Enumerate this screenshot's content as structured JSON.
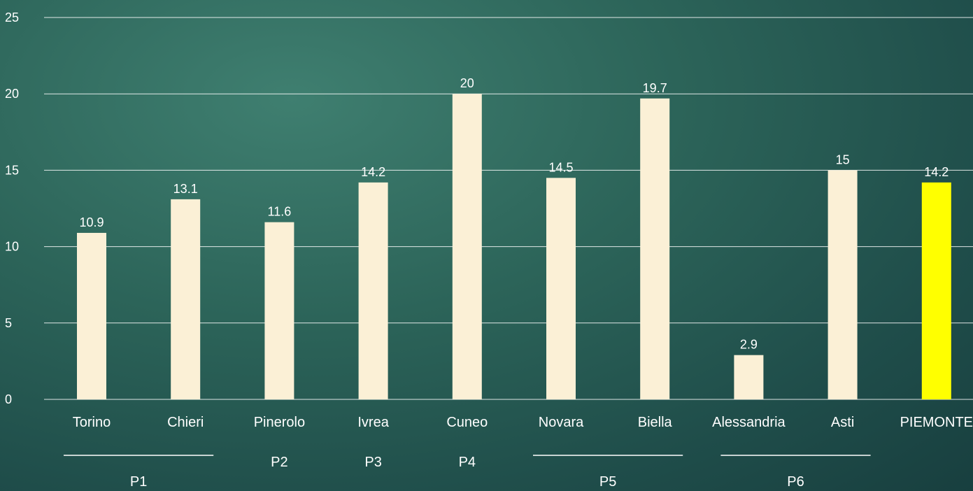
{
  "chart_data": {
    "type": "bar",
    "title": "",
    "xlabel": "",
    "ylabel": "",
    "ylim": [
      0,
      25
    ],
    "yticks": [
      "0",
      "5",
      "10",
      "15",
      "20",
      "25"
    ],
    "categories": [
      "Torino",
      "Chieri",
      "Pinerolo",
      "Ivrea",
      "Cuneo",
      "Novara",
      "Biella",
      "Alessandria",
      "Asti",
      "PIEMONTE"
    ],
    "values": [
      10.9,
      13.1,
      11.6,
      14.2,
      20,
      14.5,
      19.7,
      2.9,
      15,
      14.2
    ],
    "value_labels": [
      "10.9",
      "13.1",
      "11.6",
      "14.2",
      "20",
      "14.5",
      "19.7",
      "2.9",
      "15",
      "14.2"
    ],
    "groups": [
      {
        "label": "P1",
        "categories": [
          "Torino",
          "Chieri"
        ]
      },
      {
        "label": "P2",
        "categories": [
          "Pinerolo"
        ]
      },
      {
        "label": "P3",
        "categories": [
          "Ivrea"
        ]
      },
      {
        "label": "P4",
        "categories": [
          "Cuneo"
        ]
      },
      {
        "label": "P5",
        "categories": [
          "Novara",
          "Biella"
        ]
      },
      {
        "label": "P6",
        "categories": [
          "Alessandria",
          "Asti"
        ]
      }
    ],
    "grid": true,
    "colors": {
      "bar": "#fbf0d6",
      "highlight": "#ffff00",
      "gridline": "#ffffff",
      "text": "#ffffff"
    },
    "highlight_category": "PIEMONTE"
  }
}
